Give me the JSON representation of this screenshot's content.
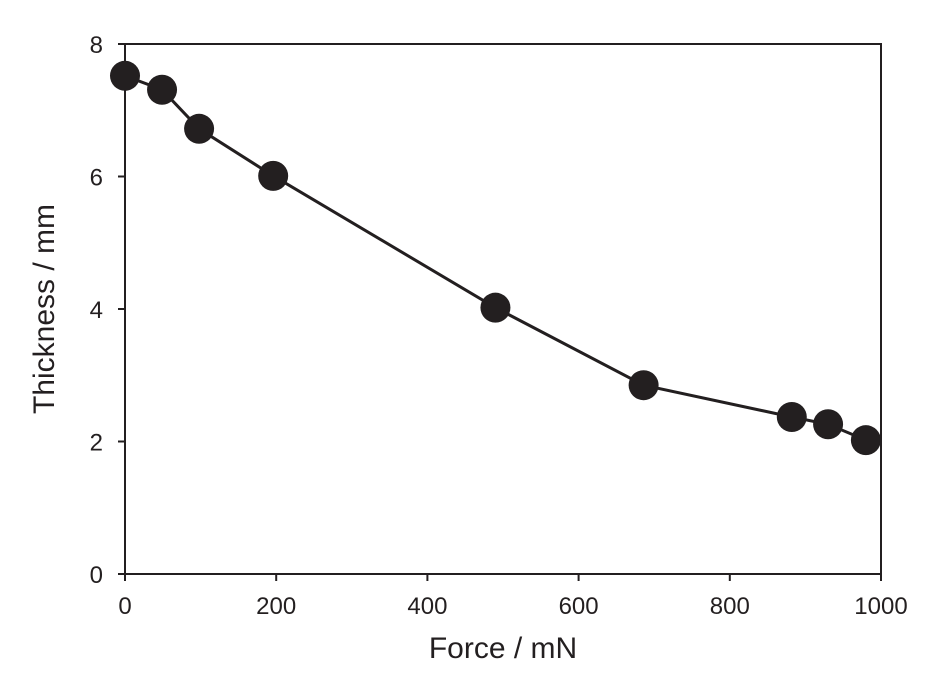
{
  "chart_data": {
    "type": "line",
    "title": "",
    "xlabel": "Force / mN",
    "ylabel": "Thickness / mm",
    "xlim": [
      0,
      1000
    ],
    "ylim": [
      0,
      8
    ],
    "xticks": [
      "0",
      "200",
      "400",
      "600",
      "800",
      "1000"
    ],
    "yticks": [
      "0",
      "2",
      "4",
      "6",
      "8"
    ],
    "grid": false,
    "series": [
      {
        "name": "Thickness",
        "color": "#231f20",
        "x": [
          0,
          49,
          98,
          196,
          490,
          686,
          882,
          930,
          980
        ],
        "y": [
          7.52,
          7.31,
          6.72,
          6.01,
          4.02,
          2.85,
          2.37,
          2.26,
          2.02
        ]
      }
    ]
  }
}
